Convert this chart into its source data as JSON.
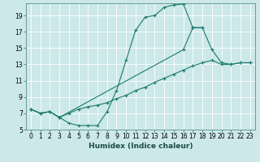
{
  "xlabel": "Humidex (Indice chaleur)",
  "bg_color": "#cce8e8",
  "grid_color": "#b8d8d8",
  "line_color": "#1a7a6e",
  "xlim": [
    -0.5,
    23.5
  ],
  "ylim": [
    5,
    20.5
  ],
  "xticks": [
    0,
    1,
    2,
    3,
    4,
    5,
    6,
    7,
    8,
    9,
    10,
    11,
    12,
    13,
    14,
    15,
    16,
    17,
    18,
    19,
    20,
    21,
    22,
    23
  ],
  "yticks": [
    5,
    7,
    9,
    11,
    13,
    15,
    17,
    19
  ],
  "line1_x": [
    0,
    1,
    2,
    3,
    4,
    5,
    6,
    7,
    8,
    9,
    10,
    11,
    12,
    13,
    14,
    15,
    16,
    17,
    18
  ],
  "line1_y": [
    7.5,
    7.0,
    7.2,
    6.5,
    5.8,
    5.5,
    5.5,
    5.5,
    7.2,
    9.8,
    13.5,
    17.2,
    18.8,
    19.0,
    20.0,
    20.3,
    20.4,
    17.5,
    17.5
  ],
  "line2_x": [
    0,
    1,
    2,
    3,
    16,
    17,
    18,
    19,
    20,
    21,
    22,
    23
  ],
  "line2_y": [
    7.5,
    7.0,
    7.2,
    6.5,
    14.8,
    17.5,
    17.5,
    14.8,
    13.2,
    13.0,
    13.2,
    13.2
  ],
  "line3_x": [
    0,
    1,
    2,
    3,
    4,
    5,
    6,
    7,
    8,
    9,
    10,
    11,
    12,
    13,
    14,
    15,
    16,
    17,
    18,
    19,
    20,
    21,
    22,
    23
  ],
  "line3_y": [
    7.5,
    7.0,
    7.2,
    6.5,
    7.0,
    7.5,
    7.8,
    8.0,
    8.3,
    8.8,
    9.2,
    9.8,
    10.2,
    10.8,
    11.3,
    11.8,
    12.3,
    12.8,
    13.2,
    13.5,
    13.0,
    13.0,
    13.2,
    13.2
  ]
}
